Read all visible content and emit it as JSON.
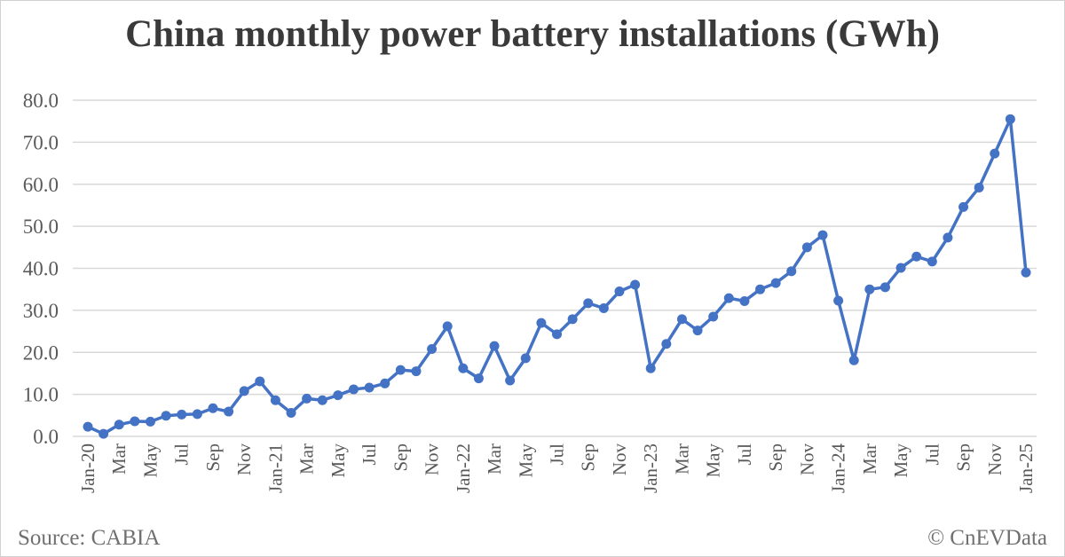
{
  "chart_data": {
    "type": "line",
    "title": "China monthly power battery installations (GWh)",
    "xlabel": "",
    "ylabel": "",
    "ylim": [
      0,
      80
    ],
    "yticks": [
      "0.0",
      "10.0",
      "20.0",
      "30.0",
      "40.0",
      "50.0",
      "60.0",
      "70.0",
      "80.0"
    ],
    "grid": true,
    "line_color": "#4472C4",
    "x": [
      "Jan-20",
      "Feb-20",
      "Mar-20",
      "Apr-20",
      "May-20",
      "Jun-20",
      "Jul-20",
      "Aug-20",
      "Sep-20",
      "Oct-20",
      "Nov-20",
      "Dec-20",
      "Jan-21",
      "Feb-21",
      "Mar-21",
      "Apr-21",
      "May-21",
      "Jun-21",
      "Jul-21",
      "Aug-21",
      "Sep-21",
      "Oct-21",
      "Nov-21",
      "Dec-21",
      "Jan-22",
      "Feb-22",
      "Mar-22",
      "Apr-22",
      "May-22",
      "Jun-22",
      "Jul-22",
      "Aug-22",
      "Sep-22",
      "Oct-22",
      "Nov-22",
      "Dec-22",
      "Jan-23",
      "Feb-23",
      "Mar-23",
      "Apr-23",
      "May-23",
      "Jun-23",
      "Jul-23",
      "Aug-23",
      "Sep-23",
      "Oct-23",
      "Nov-23",
      "Dec-23",
      "Jan-24",
      "Feb-24",
      "Mar-24",
      "Apr-24",
      "May-24",
      "Jun-24",
      "Jul-24",
      "Aug-24",
      "Sep-24",
      "Oct-24",
      "Nov-24",
      "Dec-24",
      "Jan-25"
    ],
    "xtick_labels": [
      "Jan-20",
      "Mar",
      "May",
      "Jul",
      "Sep",
      "Nov",
      "Jan-21",
      "Mar",
      "May",
      "Jul",
      "Sep",
      "Nov",
      "Jan-22",
      "Mar",
      "May",
      "Jul",
      "Sep",
      "Nov",
      "Jan-23",
      "Mar",
      "May",
      "Jul",
      "Sep",
      "Nov",
      "Jan-24",
      "Mar",
      "May",
      "Jul",
      "Sep",
      "Nov",
      "Jan-25"
    ],
    "values": [
      2.3,
      0.6,
      2.8,
      3.6,
      3.5,
      4.9,
      5.2,
      5.3,
      6.7,
      5.9,
      10.8,
      13.1,
      8.6,
      5.6,
      9.0,
      8.6,
      9.8,
      11.2,
      11.6,
      12.6,
      15.8,
      15.5,
      20.8,
      26.2,
      16.2,
      13.8,
      21.5,
      13.3,
      18.6,
      27.0,
      24.3,
      27.9,
      31.7,
      30.5,
      34.5,
      36.1,
      16.2,
      22.0,
      27.9,
      25.2,
      28.5,
      32.9,
      32.2,
      35.0,
      36.5,
      39.3,
      45.0,
      47.9,
      32.3,
      18.1,
      35.0,
      35.5,
      40.1,
      42.8,
      41.6,
      47.3,
      54.6,
      59.2,
      67.3,
      75.5,
      39.0
    ]
  },
  "footer": {
    "source": "Source: CABIA",
    "credit": "© CnEVData"
  }
}
